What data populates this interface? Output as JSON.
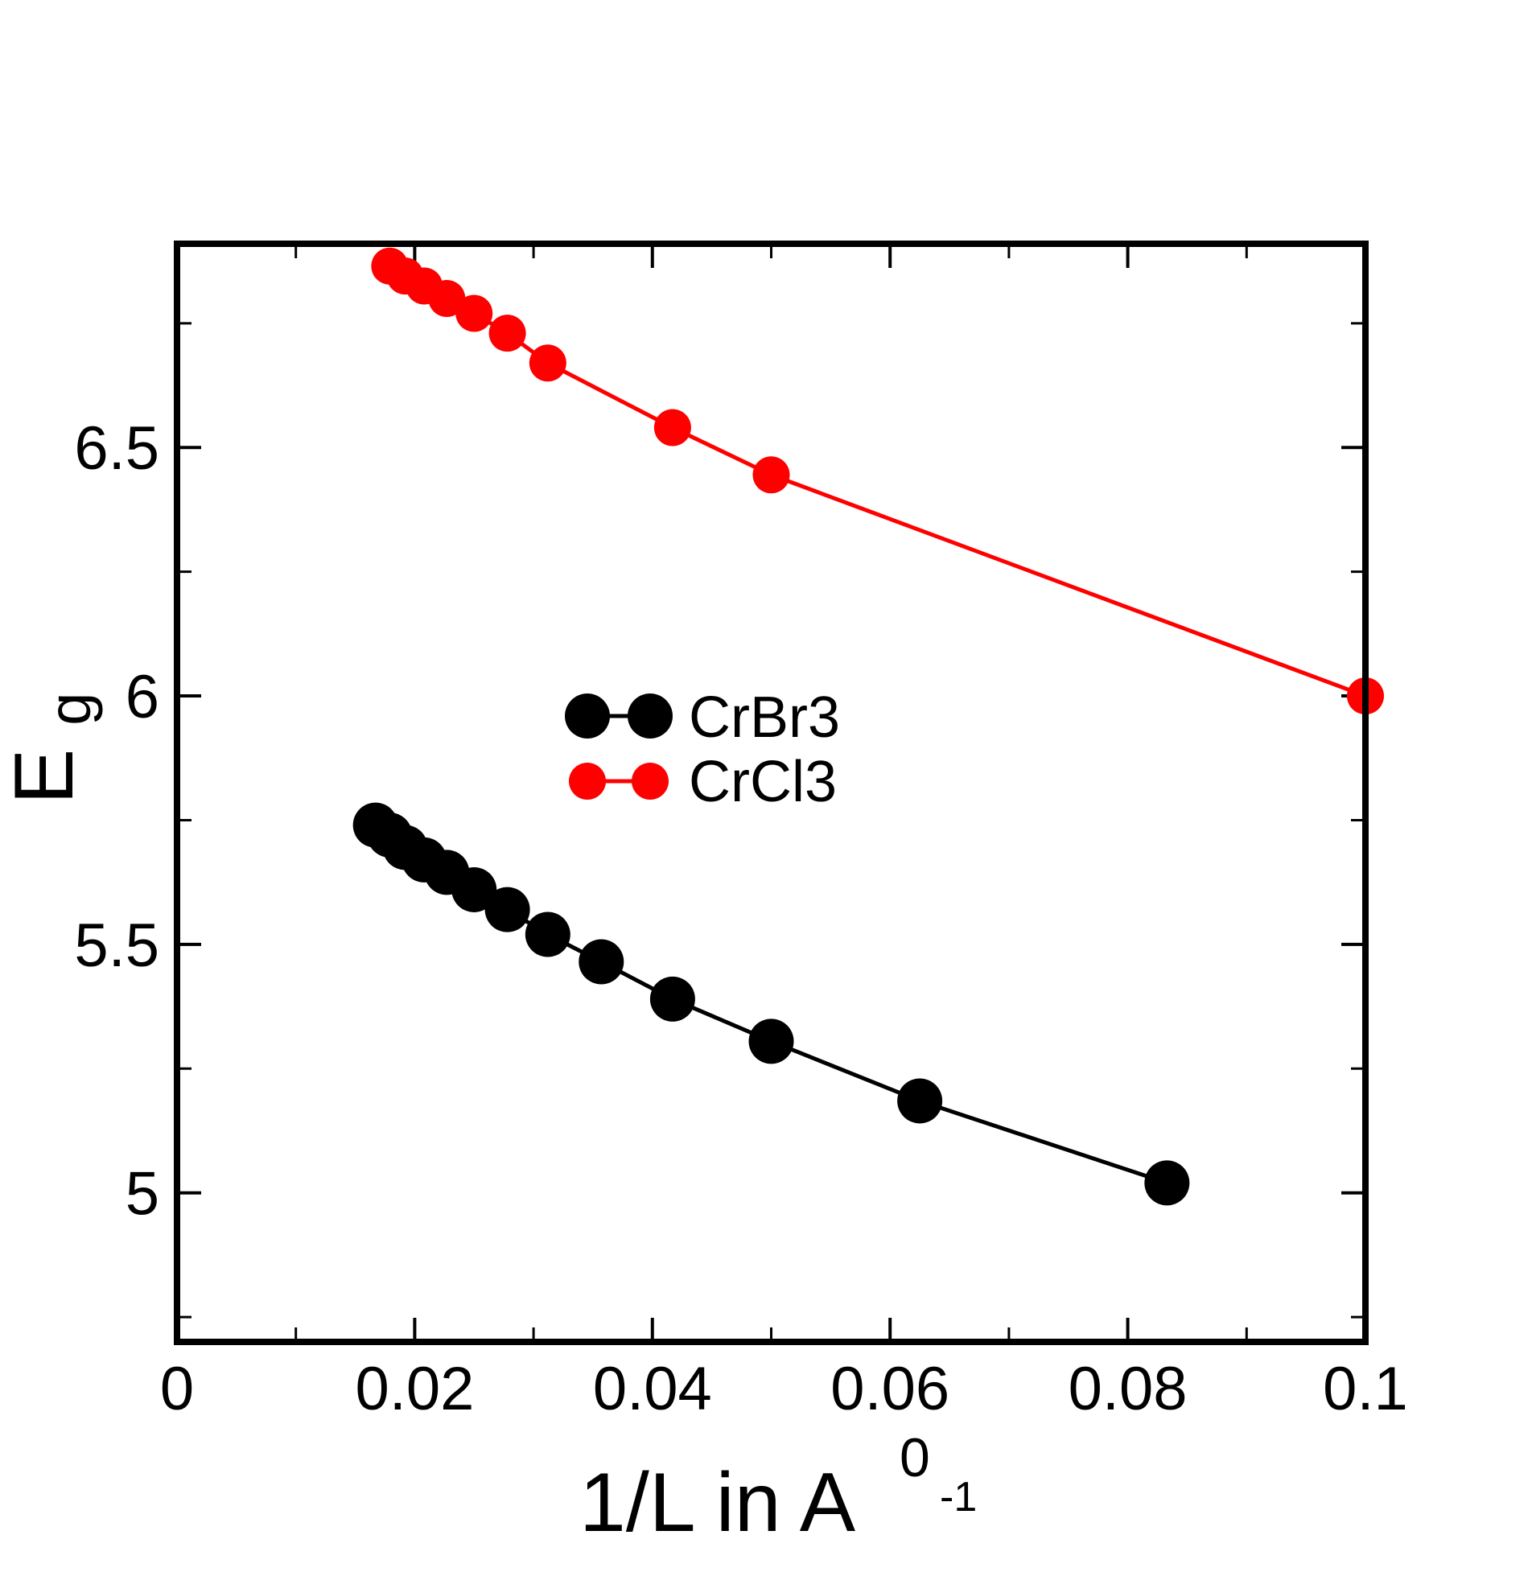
{
  "chart_data": {
    "type": "line",
    "xlabel": {
      "main": "1/L in A",
      "superscript": "0",
      "exponent": "-1"
    },
    "ylabel": {
      "main": "E",
      "subscript": "g"
    },
    "xlim": [
      0,
      0.1
    ],
    "ylim": [
      4.7,
      6.91
    ],
    "x_ticks": [
      0,
      0.02,
      0.04,
      0.06,
      0.08,
      0.1
    ],
    "x_tick_labels": [
      "0",
      "0.02",
      "0.04",
      "0.06",
      "0.08",
      "0.1"
    ],
    "x_minor_ticks": [
      0.01,
      0.03,
      0.05,
      0.07,
      0.09
    ],
    "y_ticks": [
      5,
      5.5,
      6,
      6.5
    ],
    "y_tick_labels": [
      "5",
      "5.5",
      "6",
      "6.5"
    ],
    "y_minor_ticks": [
      4.75,
      5.25,
      5.75,
      6.25,
      6.75
    ],
    "grid": false,
    "legend_position": "center",
    "series": [
      {
        "name": "CrBr3",
        "color": "#000000",
        "marker": "circle-large",
        "x": [
          0.0167,
          0.0179,
          0.0192,
          0.0208,
          0.0227,
          0.025,
          0.0278,
          0.0312,
          0.0357,
          0.0417,
          0.05,
          0.0625,
          0.0833
        ],
        "y": [
          5.74,
          5.72,
          5.695,
          5.67,
          5.645,
          5.61,
          5.57,
          5.52,
          5.465,
          5.39,
          5.305,
          5.185,
          5.02
        ]
      },
      {
        "name": "CrCl3",
        "color": "#ff0000",
        "marker": "circle-small",
        "x": [
          0.0179,
          0.0192,
          0.0208,
          0.0227,
          0.025,
          0.0278,
          0.0312,
          0.0417,
          0.05,
          0.1
        ],
        "y": [
          6.865,
          6.845,
          6.825,
          6.8,
          6.77,
          6.73,
          6.67,
          6.54,
          6.445,
          6.0
        ]
      }
    ]
  }
}
